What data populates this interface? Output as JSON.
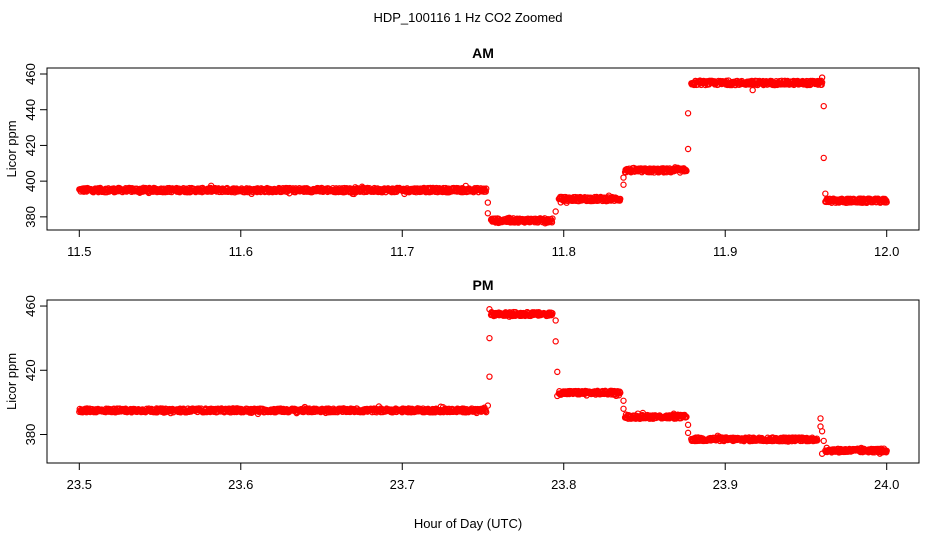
{
  "figure": {
    "title": "HDP_100116  1 Hz CO2 Zoomed",
    "xlabel": "Hour of Day (UTC)"
  },
  "chart_data": [
    {
      "type": "scatter",
      "title": "AM",
      "ylabel": "Licor ppm",
      "xlim": [
        11.5,
        12.0
      ],
      "ylim": [
        376,
        460
      ],
      "x_ticks": [
        "11.5",
        "11.6",
        "11.7",
        "11.8",
        "11.9",
        "12.0"
      ],
      "y_ticks": [
        "380",
        "400",
        "420",
        "440",
        "460"
      ],
      "marker": "open circle",
      "color": "#ff0000",
      "segments": [
        {
          "x_start": 11.5,
          "x_end": 11.752,
          "y": 395
        },
        {
          "x_start": 11.755,
          "x_end": 11.793,
          "y": 378
        },
        {
          "x_start": 11.797,
          "x_end": 11.835,
          "y": 390
        },
        {
          "x_start": 11.838,
          "x_end": 11.876,
          "y": 406
        },
        {
          "x_start": 11.879,
          "x_end": 11.96,
          "y": 455
        },
        {
          "x_start": 11.962,
          "x_end": 12.0,
          "y": 389
        }
      ],
      "transition_points": [
        {
          "x": 11.753,
          "y": 382
        },
        {
          "x": 11.753,
          "y": 388
        },
        {
          "x": 11.795,
          "y": 383
        },
        {
          "x": 11.837,
          "y": 398
        },
        {
          "x": 11.837,
          "y": 402
        },
        {
          "x": 11.877,
          "y": 418
        },
        {
          "x": 11.877,
          "y": 438
        },
        {
          "x": 11.917,
          "y": 451
        },
        {
          "x": 11.96,
          "y": 458
        },
        {
          "x": 11.961,
          "y": 442
        },
        {
          "x": 11.961,
          "y": 413
        },
        {
          "x": 11.962,
          "y": 393
        }
      ]
    },
    {
      "type": "scatter",
      "title": "PM",
      "ylabel": "Licor ppm",
      "xlim": [
        23.5,
        24.0
      ],
      "ylim": [
        366,
        460
      ],
      "x_ticks": [
        "23.5",
        "23.6",
        "23.7",
        "23.8",
        "23.9",
        "24.0"
      ],
      "y_ticks": [
        "380",
        "420",
        "460"
      ],
      "marker": "open circle",
      "color": "#ff0000",
      "segments": [
        {
          "x_start": 23.5,
          "x_end": 23.752,
          "y": 395
        },
        {
          "x_start": 23.755,
          "x_end": 23.793,
          "y": 455
        },
        {
          "x_start": 23.797,
          "x_end": 23.835,
          "y": 406
        },
        {
          "x_start": 23.838,
          "x_end": 23.876,
          "y": 391
        },
        {
          "x_start": 23.879,
          "x_end": 23.957,
          "y": 377
        },
        {
          "x_start": 23.962,
          "x_end": 24.0,
          "y": 370
        }
      ],
      "transition_points": [
        {
          "x": 23.753,
          "y": 398
        },
        {
          "x": 23.754,
          "y": 416
        },
        {
          "x": 23.754,
          "y": 440
        },
        {
          "x": 23.754,
          "y": 458
        },
        {
          "x": 23.795,
          "y": 451
        },
        {
          "x": 23.795,
          "y": 438
        },
        {
          "x": 23.796,
          "y": 419
        },
        {
          "x": 23.796,
          "y": 404
        },
        {
          "x": 23.837,
          "y": 396
        },
        {
          "x": 23.837,
          "y": 401
        },
        {
          "x": 23.877,
          "y": 381
        },
        {
          "x": 23.877,
          "y": 386
        },
        {
          "x": 23.959,
          "y": 390
        },
        {
          "x": 23.959,
          "y": 385
        },
        {
          "x": 23.96,
          "y": 382
        },
        {
          "x": 23.96,
          "y": 368
        },
        {
          "x": 23.961,
          "y": 376
        }
      ]
    }
  ]
}
